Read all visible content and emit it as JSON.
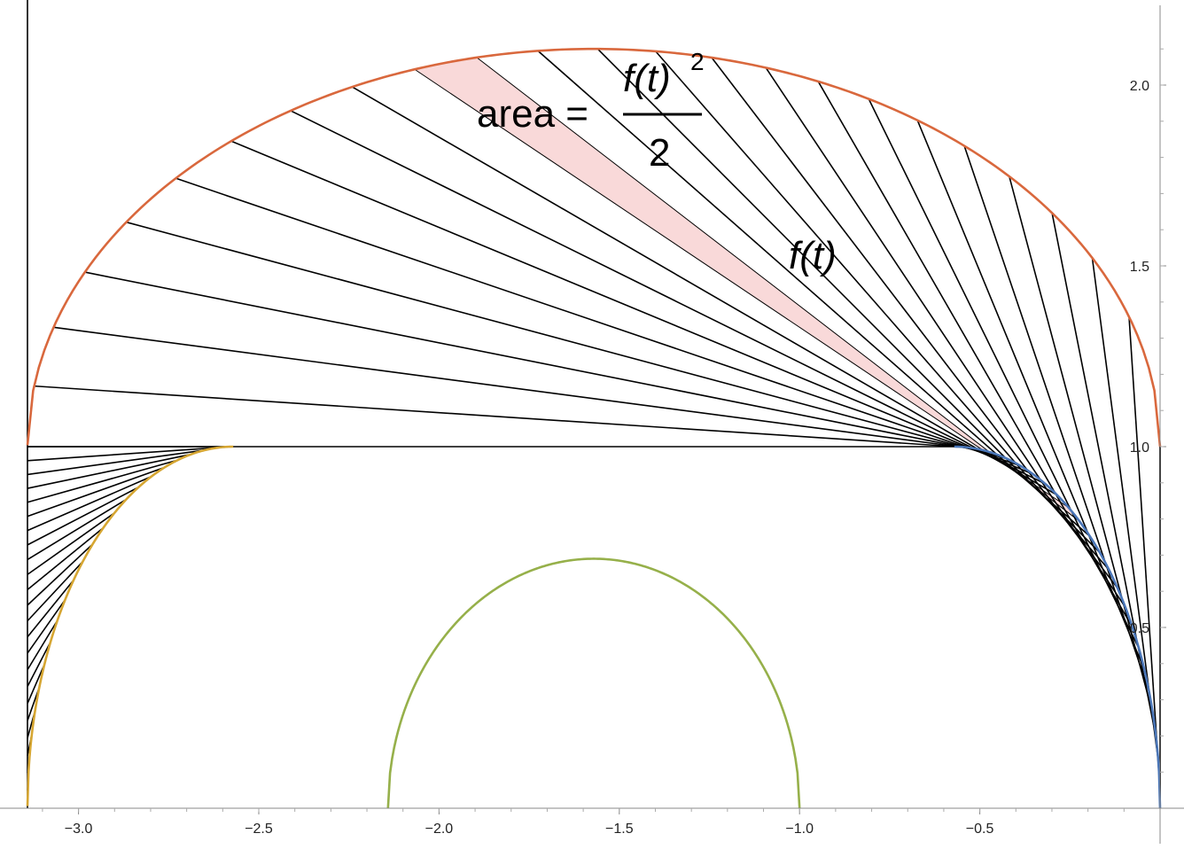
{
  "chart_data": {
    "type": "line",
    "title": "",
    "xlabel": "",
    "ylabel": "",
    "xlim": [
      -3.14159,
      0
    ],
    "ylim": [
      0,
      2.2
    ],
    "grid": false,
    "x_ticks": [
      -3.0,
      -2.5,
      -2.0,
      -1.5,
      -1.0,
      -0.5
    ],
    "x_tick_labels": [
      "−3.0",
      "−2.5",
      "−2.0",
      "−1.5",
      "−1.0",
      "−0.5"
    ],
    "y_ticks": [
      0.5,
      1.0,
      1.5,
      2.0
    ],
    "y_tick_labels": [
      "0.5",
      "1.0",
      "1.5",
      "2.0"
    ],
    "series": [
      {
        "color": "#d9683d",
        "curve": "outer semi-ellipse",
        "center": [
          -1.5708,
          1.0
        ],
        "half_width": 1.5708,
        "height": 1.1,
        "x_range": [
          -3.14159,
          0
        ]
      },
      {
        "color": "#96b04a",
        "curve": "inner semi-ellipse",
        "center": [
          -1.5708,
          0.0
        ],
        "half_width": 0.5708,
        "height": 0.69,
        "x_range": [
          -2.1416,
          -1.0
        ]
      },
      {
        "color": "#d6a632",
        "curve": "left quarter arc",
        "center": [
          -2.5708,
          0.0
        ],
        "half_width": 0.5708,
        "height": 1.0,
        "x_range": [
          -3.14159,
          -2.5708
        ]
      },
      {
        "color": "#4a76b8",
        "curve": "right quarter arc",
        "center": [
          -0.5708,
          0.0
        ],
        "half_width": 0.5708,
        "height": 1.0,
        "x_range": [
          -0.5708,
          0
        ]
      }
    ],
    "radial_segments": {
      "color": "#000000",
      "right_fan": {
        "count": 25,
        "description": "tangent segments from right quarter arc to outer semi-ellipse"
      },
      "left_fan": {
        "count": 24,
        "description": "tangent segments from left quarter arc to the line x = -π"
      },
      "highlight_color": "#f9d9d9"
    },
    "annotations": {
      "formula": {
        "lhs": "area =",
        "numerator": "f(t)",
        "exponent": "2",
        "denominator": "2"
      },
      "segment_label": "f(t)"
    }
  }
}
